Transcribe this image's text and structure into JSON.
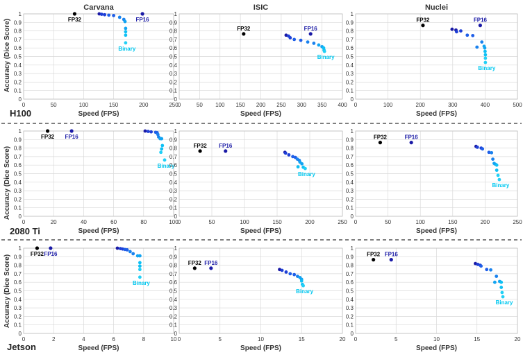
{
  "colors": {
    "fp32": "#000000",
    "fp16": "#1a1aa6",
    "fp16_label": "#1a1aa6",
    "binary_label": "#00c8f0",
    "series": [
      "#1a1aa6",
      "#1e3fd6",
      "#1f5fe8",
      "#1a82ee",
      "#12a4f2",
      "#0fc0f4",
      "#22d0f6"
    ]
  },
  "ylabel": "Accuracy (Dice Score)",
  "rows": [
    {
      "device": "H100"
    },
    {
      "device": "2080 Ti"
    },
    {
      "device": "Jetson"
    }
  ],
  "chart_data": [
    {
      "type": "scatter",
      "row": 0,
      "col": 0,
      "title": "Carvana",
      "xlabel": "Speed (FPS)",
      "xlim": [
        0,
        250
      ],
      "ylim": [
        0,
        1
      ],
      "xticks": [
        "0",
        "50",
        "100",
        "150",
        "200",
        "250"
      ],
      "yticks": [
        "0",
        "0.1",
        "0.2",
        "0.3",
        "0.4",
        "0.5",
        "0.6",
        "0.7",
        "0.8",
        "0.9",
        "1"
      ],
      "fp32": {
        "label": "FP32",
        "x": 85,
        "y": 1.0
      },
      "fp16": {
        "label": "FP16",
        "x": 198,
        "y": 1.0
      },
      "binary_label": "Binary",
      "series": [
        {
          "x": 126,
          "y": 1.0
        },
        {
          "x": 130,
          "y": 0.995
        },
        {
          "x": 135,
          "y": 0.99
        },
        {
          "x": 142,
          "y": 0.985
        },
        {
          "x": 150,
          "y": 0.98
        },
        {
          "x": 160,
          "y": 0.96
        },
        {
          "x": 167,
          "y": 0.935
        },
        {
          "x": 169,
          "y": 0.91
        },
        {
          "x": 170,
          "y": 0.83
        },
        {
          "x": 170,
          "y": 0.79
        },
        {
          "x": 170,
          "y": 0.75
        },
        {
          "x": 170,
          "y": 0.66
        }
      ]
    },
    {
      "type": "scatter",
      "row": 0,
      "col": 1,
      "title": "ISIC",
      "xlabel": "Speed (FPS)",
      "xlim": [
        0,
        400
      ],
      "ylim": [
        0,
        1
      ],
      "xticks": [
        "0",
        "50",
        "100",
        "150",
        "200",
        "250",
        "300",
        "350",
        "400"
      ],
      "yticks": [
        "0",
        "0.1",
        "0.2",
        "0.3",
        "0.4",
        "0.5",
        "0.6",
        "0.7",
        "0.8",
        "0.9",
        "1"
      ],
      "fp32": {
        "label": "FP32",
        "x": 158,
        "y": 0.765
      },
      "fp16": {
        "label": "FP16",
        "x": 322,
        "y": 0.765
      },
      "binary_label": "Binary",
      "series": [
        {
          "x": 262,
          "y": 0.75
        },
        {
          "x": 268,
          "y": 0.74
        },
        {
          "x": 272,
          "y": 0.72
        },
        {
          "x": 282,
          "y": 0.7
        },
        {
          "x": 298,
          "y": 0.69
        },
        {
          "x": 315,
          "y": 0.67
        },
        {
          "x": 330,
          "y": 0.655
        },
        {
          "x": 342,
          "y": 0.635
        },
        {
          "x": 350,
          "y": 0.615
        },
        {
          "x": 354,
          "y": 0.6
        },
        {
          "x": 355,
          "y": 0.575
        },
        {
          "x": 356,
          "y": 0.56
        }
      ]
    },
    {
      "type": "scatter",
      "row": 0,
      "col": 2,
      "title": "Nuclei",
      "xlabel": "Speed (FPS)",
      "xlim": [
        0,
        500
      ],
      "ylim": [
        0,
        1
      ],
      "xticks": [
        "0",
        "100",
        "200",
        "300",
        "400",
        "500"
      ],
      "yticks": [
        "0",
        "0.1",
        "0.2",
        "0.3",
        "0.4",
        "0.5",
        "0.6",
        "0.7",
        "0.8",
        "0.9",
        "1"
      ],
      "fp32": {
        "label": "FP32",
        "x": 208,
        "y": 0.865
      },
      "fp16": {
        "label": "FP16",
        "x": 385,
        "y": 0.865
      },
      "binary_label": "Binary",
      "series": [
        {
          "x": 298,
          "y": 0.82
        },
        {
          "x": 310,
          "y": 0.81
        },
        {
          "x": 312,
          "y": 0.79
        },
        {
          "x": 325,
          "y": 0.8
        },
        {
          "x": 345,
          "y": 0.75
        },
        {
          "x": 362,
          "y": 0.745
        },
        {
          "x": 375,
          "y": 0.61
        },
        {
          "x": 390,
          "y": 0.67
        },
        {
          "x": 397,
          "y": 0.62
        },
        {
          "x": 399,
          "y": 0.6
        },
        {
          "x": 400,
          "y": 0.56
        },
        {
          "x": 401,
          "y": 0.52
        },
        {
          "x": 401,
          "y": 0.48
        },
        {
          "x": 401,
          "y": 0.43
        }
      ]
    },
    {
      "type": "scatter",
      "row": 1,
      "col": 0,
      "title": "",
      "xlabel": "Speed (FPS)",
      "xlim": [
        0,
        100
      ],
      "ylim": [
        0,
        1
      ],
      "xticks": [
        "0",
        "20",
        "40",
        "60",
        "80",
        "100"
      ],
      "yticks": [
        "0",
        "0.1",
        "0.2",
        "0.3",
        "0.4",
        "0.5",
        "0.6",
        "0.7",
        "0.8",
        "0.9",
        "1"
      ],
      "fp32": {
        "label": "FP32",
        "x": 16,
        "y": 1.0
      },
      "fp16": {
        "label": "FP16",
        "x": 32,
        "y": 1.0
      },
      "binary_label": "Binary",
      "series": [
        {
          "x": 81,
          "y": 1.0
        },
        {
          "x": 83,
          "y": 0.995
        },
        {
          "x": 85,
          "y": 0.99
        },
        {
          "x": 88,
          "y": 0.985
        },
        {
          "x": 89,
          "y": 0.98
        },
        {
          "x": 89.5,
          "y": 0.96
        },
        {
          "x": 90,
          "y": 0.93
        },
        {
          "x": 91,
          "y": 0.91
        },
        {
          "x": 92,
          "y": 0.91
        },
        {
          "x": 92.5,
          "y": 0.83
        },
        {
          "x": 92,
          "y": 0.79
        },
        {
          "x": 91.5,
          "y": 0.75
        },
        {
          "x": 94,
          "y": 0.66
        }
      ]
    },
    {
      "type": "scatter",
      "row": 1,
      "col": 1,
      "title": "",
      "xlabel": "Speed (FPS)",
      "xlim": [
        0,
        250
      ],
      "ylim": [
        0,
        1
      ],
      "xticks": [
        "0",
        "50",
        "100",
        "150",
        "200",
        "250"
      ],
      "yticks": [
        "0",
        "0.1",
        "0.2",
        "0.3",
        "0.4",
        "0.5",
        "0.6",
        "0.7",
        "0.8",
        "0.9",
        "1"
      ],
      "fp32": {
        "label": "FP32",
        "x": 32,
        "y": 0.765
      },
      "fp16": {
        "label": "FP16",
        "x": 71,
        "y": 0.765
      },
      "binary_label": "Binary",
      "series": [
        {
          "x": 162,
          "y": 0.75
        },
        {
          "x": 163,
          "y": 0.74
        },
        {
          "x": 168,
          "y": 0.72
        },
        {
          "x": 174,
          "y": 0.7
        },
        {
          "x": 178,
          "y": 0.69
        },
        {
          "x": 181,
          "y": 0.67
        },
        {
          "x": 184,
          "y": 0.655
        },
        {
          "x": 185,
          "y": 0.635
        },
        {
          "x": 188,
          "y": 0.615
        },
        {
          "x": 182,
          "y": 0.58
        },
        {
          "x": 190,
          "y": 0.575
        },
        {
          "x": 193,
          "y": 0.56
        }
      ]
    },
    {
      "type": "scatter",
      "row": 1,
      "col": 2,
      "title": "",
      "xlabel": "Speed (FPS)",
      "xlim": [
        0,
        250
      ],
      "ylim": [
        0,
        1
      ],
      "xticks": [
        "0",
        "50",
        "100",
        "150",
        "200",
        "250"
      ],
      "yticks": [
        "0",
        "0.1",
        "0.2",
        "0.3",
        "0.4",
        "0.5",
        "0.6",
        "0.7",
        "0.8",
        "0.9",
        "1"
      ],
      "fp32": {
        "label": "FP32",
        "x": 38,
        "y": 0.865
      },
      "fp16": {
        "label": "FP16",
        "x": 86,
        "y": 0.865
      },
      "binary_label": "Binary",
      "series": [
        {
          "x": 186,
          "y": 0.82
        },
        {
          "x": 188,
          "y": 0.81
        },
        {
          "x": 194,
          "y": 0.8
        },
        {
          "x": 196,
          "y": 0.79
        },
        {
          "x": 206,
          "y": 0.75
        },
        {
          "x": 210,
          "y": 0.745
        },
        {
          "x": 212,
          "y": 0.67
        },
        {
          "x": 214,
          "y": 0.62
        },
        {
          "x": 216,
          "y": 0.61
        },
        {
          "x": 218,
          "y": 0.6
        },
        {
          "x": 218,
          "y": 0.54
        },
        {
          "x": 220,
          "y": 0.48
        },
        {
          "x": 222,
          "y": 0.43
        }
      ]
    },
    {
      "type": "scatter",
      "row": 2,
      "col": 0,
      "title": "",
      "xlabel": "Speed (FPS)",
      "xlim": [
        0,
        10
      ],
      "ylim": [
        0,
        1
      ],
      "xticks": [
        "0",
        "2",
        "4",
        "6",
        "8",
        "10"
      ],
      "yticks": [
        "0",
        "0.1",
        "0.2",
        "0.3",
        "0.4",
        "0.5",
        "0.6",
        "0.7",
        "0.8",
        "0.9",
        "1"
      ],
      "fp32": {
        "label": "FP32",
        "x": 0.9,
        "y": 1.0
      },
      "fp16": {
        "label": "FP16",
        "x": 1.8,
        "y": 1.0
      },
      "binary_label": "Binary",
      "series": [
        {
          "x": 6.25,
          "y": 1.0
        },
        {
          "x": 6.45,
          "y": 0.995
        },
        {
          "x": 6.6,
          "y": 0.99
        },
        {
          "x": 6.75,
          "y": 0.985
        },
        {
          "x": 6.9,
          "y": 0.98
        },
        {
          "x": 7.1,
          "y": 0.96
        },
        {
          "x": 7.3,
          "y": 0.935
        },
        {
          "x": 7.6,
          "y": 0.91
        },
        {
          "x": 7.75,
          "y": 0.91
        },
        {
          "x": 7.75,
          "y": 0.83
        },
        {
          "x": 7.75,
          "y": 0.79
        },
        {
          "x": 7.75,
          "y": 0.75
        },
        {
          "x": 7.75,
          "y": 0.66
        }
      ]
    },
    {
      "type": "scatter",
      "row": 2,
      "col": 1,
      "title": "",
      "xlabel": "Speed (FPS)",
      "xlim": [
        0,
        20
      ],
      "ylim": [
        0,
        1
      ],
      "xticks": [
        "0",
        "5",
        "10",
        "15",
        "20"
      ],
      "yticks": [
        "0",
        "0.1",
        "0.2",
        "0.3",
        "0.4",
        "0.5",
        "0.6",
        "0.7",
        "0.8",
        "0.9",
        "1"
      ],
      "fp32": {
        "label": "FP32",
        "x": 1.9,
        "y": 0.765
      },
      "fp16": {
        "label": "FP16",
        "x": 3.9,
        "y": 0.765
      },
      "binary_label": "Binary",
      "series": [
        {
          "x": 12.3,
          "y": 0.75
        },
        {
          "x": 12.6,
          "y": 0.74
        },
        {
          "x": 13.1,
          "y": 0.72
        },
        {
          "x": 13.6,
          "y": 0.7
        },
        {
          "x": 14.1,
          "y": 0.69
        },
        {
          "x": 14.5,
          "y": 0.67
        },
        {
          "x": 14.8,
          "y": 0.655
        },
        {
          "x": 15.0,
          "y": 0.635
        },
        {
          "x": 15.0,
          "y": 0.615
        },
        {
          "x": 15.1,
          "y": 0.575
        },
        {
          "x": 15.2,
          "y": 0.56
        }
      ]
    },
    {
      "type": "scatter",
      "row": 2,
      "col": 2,
      "title": "",
      "xlabel": "Speed (FPS)",
      "xlim": [
        0,
        20
      ],
      "ylim": [
        0,
        1
      ],
      "xticks": [
        "0",
        "5",
        "10",
        "15",
        "20"
      ],
      "yticks": [
        "0",
        "0.1",
        "0.2",
        "0.3",
        "0.4",
        "0.5",
        "0.6",
        "0.7",
        "0.8",
        "0.9",
        "1"
      ],
      "fp32": {
        "label": "FP32",
        "x": 2.2,
        "y": 0.865
      },
      "fp16": {
        "label": "FP16",
        "x": 4.4,
        "y": 0.865
      },
      "binary_label": "Binary",
      "series": [
        {
          "x": 14.8,
          "y": 0.82
        },
        {
          "x": 15.1,
          "y": 0.81
        },
        {
          "x": 15.4,
          "y": 0.8
        },
        {
          "x": 15.5,
          "y": 0.79
        },
        {
          "x": 16.2,
          "y": 0.75
        },
        {
          "x": 16.7,
          "y": 0.745
        },
        {
          "x": 17.4,
          "y": 0.67
        },
        {
          "x": 17.2,
          "y": 0.6
        },
        {
          "x": 17.8,
          "y": 0.61
        },
        {
          "x": 18.0,
          "y": 0.6
        },
        {
          "x": 18.0,
          "y": 0.54
        },
        {
          "x": 18.1,
          "y": 0.48
        },
        {
          "x": 18.2,
          "y": 0.43
        }
      ]
    }
  ]
}
